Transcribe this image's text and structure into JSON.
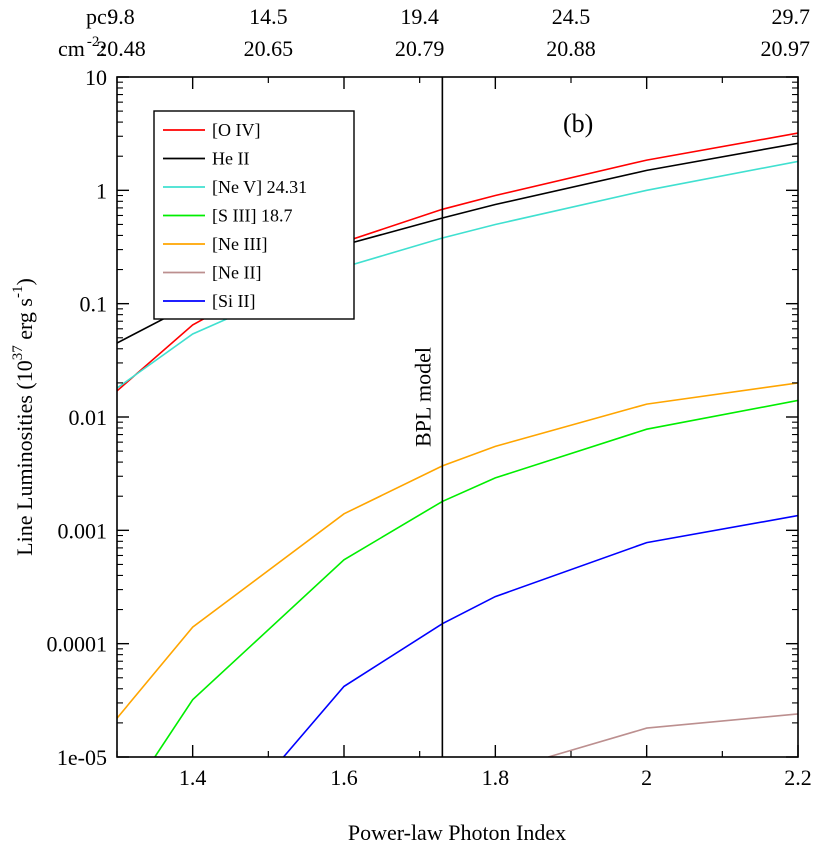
{
  "chart_data": {
    "type": "line",
    "title": "",
    "panel_label": "(b)",
    "xlabel": "Power-law Photon Index",
    "ylabel_parts": {
      "base": "Line Luminosities (10",
      "sup1": "37",
      "mid": " erg s",
      "sup2": "-1",
      "end": ")"
    },
    "xlim": [
      1.3,
      2.2
    ],
    "ylim": [
      1e-05,
      10
    ],
    "yscale": "log",
    "x_ticks": [
      1.4,
      1.6,
      1.8,
      2.0,
      2.2
    ],
    "x_tick_labels": [
      "1.4",
      "1.6",
      "1.8",
      "2",
      "2.2"
    ],
    "y_ticks": [
      1e-05,
      0.0001,
      0.001,
      0.01,
      0.1,
      1,
      10
    ],
    "y_tick_labels": [
      "1e-05",
      "0.0001",
      "0.001",
      "0.01",
      "0.1",
      "1",
      "10"
    ],
    "top_axis": {
      "row1_label": "pc:",
      "row2_label_base": "cm",
      "row2_label_sup": "-2",
      "row2_label_colon": ":",
      "x_positions": [
        1.3,
        1.5,
        1.7,
        1.9,
        2.1
      ],
      "row1_values": [
        "9.8",
        "14.5",
        "19.4",
        "24.5",
        "29.7"
      ],
      "row2_values": [
        "20.48",
        "20.65",
        "20.79",
        "20.88",
        "20.97"
      ]
    },
    "vline": {
      "x": 1.73,
      "label": "BPL model"
    },
    "legend_location": "top-left",
    "series": [
      {
        "name": "[O IV]",
        "color": "#ff0000",
        "x": [
          1.3,
          1.4,
          1.6,
          1.73,
          1.8,
          2.0,
          2.2
        ],
        "y": [
          0.017,
          0.065,
          0.35,
          0.68,
          0.9,
          1.85,
          3.2
        ]
      },
      {
        "name": "He II",
        "color": "#000000",
        "x": [
          1.3,
          1.4,
          1.6,
          1.73,
          1.8,
          2.0,
          2.2
        ],
        "y": [
          0.045,
          0.1,
          0.33,
          0.57,
          0.75,
          1.5,
          2.6
        ]
      },
      {
        "name": "[Ne V] 24.31",
        "color": "#40e0d0",
        "x": [
          1.3,
          1.4,
          1.6,
          1.73,
          1.8,
          2.0,
          2.2
        ],
        "y": [
          0.018,
          0.054,
          0.21,
          0.38,
          0.5,
          1.0,
          1.8
        ]
      },
      {
        "name": "[S III] 18.7",
        "color": "#00ee00",
        "x": [
          1.35,
          1.4,
          1.6,
          1.73,
          1.8,
          2.0,
          2.2
        ],
        "y": [
          1e-05,
          3.2e-05,
          0.00055,
          0.0018,
          0.0029,
          0.0078,
          0.014
        ]
      },
      {
        "name": "[Ne III]",
        "color": "#ffa500",
        "x": [
          1.3,
          1.4,
          1.6,
          1.73,
          1.8,
          2.0,
          2.2
        ],
        "y": [
          2.2e-05,
          0.00014,
          0.0014,
          0.0037,
          0.0055,
          0.013,
          0.02
        ]
      },
      {
        "name": "[Ne II]",
        "color": "#bc8f8f",
        "x": [
          1.87,
          2.0,
          2.2
        ],
        "y": [
          1e-05,
          1.8e-05,
          2.4e-05
        ]
      },
      {
        "name": "[Si II]",
        "color": "#0000ff",
        "x": [
          1.52,
          1.6,
          1.73,
          1.8,
          2.0,
          2.2
        ],
        "y": [
          1e-05,
          4.2e-05,
          0.00015,
          0.00026,
          0.00078,
          0.00135
        ]
      }
    ]
  }
}
